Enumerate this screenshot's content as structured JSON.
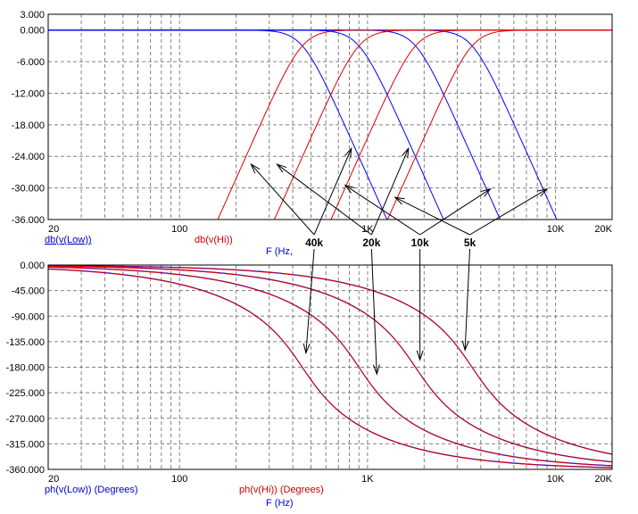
{
  "colors": {
    "low": "#0000ff",
    "hi": "#e00000",
    "grid": "#808080",
    "frame": "#000000"
  },
  "chart_data": [
    {
      "type": "line",
      "scale": "log-x",
      "xlim": [
        20,
        20000
      ],
      "ylim": [
        -36,
        3
      ],
      "x_ticks": [
        "20",
        "100",
        "1K",
        "10K",
        "20K"
      ],
      "x_tick_values": [
        20,
        100,
        1000,
        10000,
        20000
      ],
      "y_ticks": [
        "3.000",
        "0.000",
        "-6.000",
        "-12.000",
        "-18.000",
        "-24.000",
        "-30.000",
        "-36.000"
      ],
      "y_tick_values": [
        3,
        0,
        -6,
        -12,
        -18,
        -24,
        -30,
        -36
      ],
      "xlabel": "F (Hz,",
      "grid": true,
      "series": [
        {
          "name": "db(v(Low))",
          "color_key": "low",
          "kind": "lowpass",
          "cutoffs_hz": [
            450,
            900,
            1800,
            3600
          ],
          "order": 4
        },
        {
          "name": "db(v(Hi))",
          "color_key": "hi",
          "kind": "highpass",
          "cutoffs_hz": [
            450,
            900,
            1800,
            3600
          ],
          "order": 4
        }
      ],
      "annotations": [
        {
          "label": "40k",
          "anchor": [
            520,
            -27
          ],
          "targets": [
            [
              240,
              -25.5
            ],
            [
              820,
              -22.5
            ]
          ]
        },
        {
          "label": "20k",
          "anchor": [
            1050,
            -27
          ],
          "targets": [
            [
              330,
              -25.5
            ],
            [
              1650,
              -22.5
            ]
          ]
        },
        {
          "label": "10k",
          "anchor": [
            1900,
            -27
          ],
          "targets": [
            [
              760,
              -29.5
            ],
            [
              4500,
              -30.2
            ]
          ]
        },
        {
          "label": "5k",
          "anchor": [
            3500,
            -27
          ],
          "targets": [
            [
              1400,
              -31.8
            ],
            [
              9000,
              -30.2
            ]
          ]
        }
      ]
    },
    {
      "type": "line",
      "scale": "log-x",
      "xlim": [
        20,
        20000
      ],
      "ylim": [
        -360,
        0
      ],
      "x_ticks": [
        "20",
        "100",
        "1K",
        "10K",
        "20K"
      ],
      "x_tick_values": [
        20,
        100,
        1000,
        10000,
        20000
      ],
      "y_ticks": [
        "0.000",
        "-45.000",
        "-90.000",
        "-135.000",
        "-180.000",
        "-225.000",
        "-270.000",
        "-315.000",
        "-360.000"
      ],
      "y_tick_values": [
        0,
        -45,
        -90,
        -135,
        -180,
        -225,
        -270,
        -315,
        -360
      ],
      "xlabel": "F (Hz)",
      "grid": true,
      "series": [
        {
          "name": "ph(v(Low)) (Degrees)",
          "color_key": "low",
          "kind": "phase-lowpass",
          "cutoffs_hz": [
            450,
            900,
            1800,
            3600
          ],
          "order": 4
        },
        {
          "name": "ph(v(Hi)) (Degrees)",
          "color_key": "hi",
          "kind": "phase-lowpass",
          "cutoffs_hz": [
            450,
            900,
            1800,
            3600
          ],
          "order": 4
        }
      ],
      "annotations": [
        {
          "label": "40k",
          "anchor": [
            520,
            0
          ],
          "targets": [
            [
              470,
              -155
            ]
          ]
        },
        {
          "label": "20k",
          "anchor": [
            1050,
            0
          ],
          "targets": [
            [
              1120,
              -192
            ]
          ]
        },
        {
          "label": "10k",
          "anchor": [
            1900,
            0
          ],
          "targets": [
            [
              1900,
              -167
            ]
          ]
        },
        {
          "label": "5k",
          "anchor": [
            3500,
            0
          ],
          "targets": [
            [
              3300,
              -150
            ]
          ]
        }
      ]
    }
  ]
}
